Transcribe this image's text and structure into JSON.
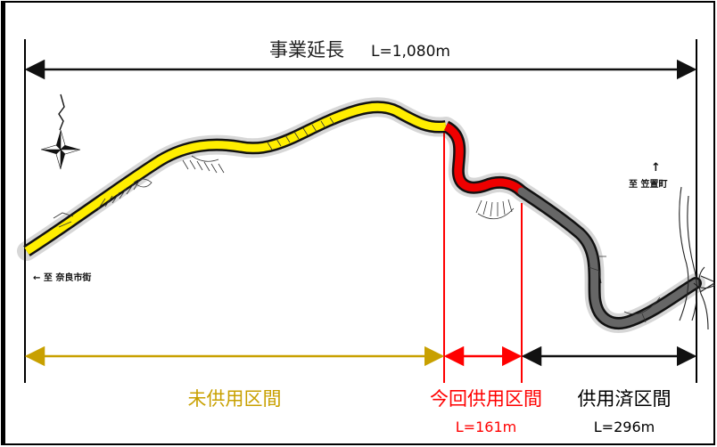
{
  "title": {
    "main": "事業延長",
    "length": "L=1,080m"
  },
  "directions": {
    "west": "← 至 奈良市街",
    "north_arrow": "↑",
    "east": "至 笠置町"
  },
  "sections": {
    "unused": {
      "label": "未供用区間",
      "length": "",
      "color": "#c8a000"
    },
    "current": {
      "label": "今回供用区間",
      "length": "L=161m",
      "color": "#ff0000"
    },
    "opened": {
      "label": "供用済区間",
      "length": "L=296m",
      "color": "#000000"
    }
  },
  "road_colors": {
    "unused": "#ffee00",
    "current": "#ee0000",
    "opened": "#666666",
    "outline": "#111111"
  }
}
